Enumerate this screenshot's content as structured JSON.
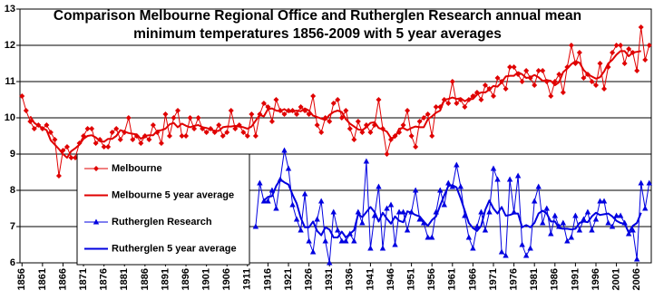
{
  "chart_data": {
    "type": "line",
    "title": "Comparison Melbourne Regional Office and Rutherglen Research annual mean minimum temperatures 1856-2009 with 5 year averages",
    "x": [
      1856,
      1857,
      1858,
      1859,
      1860,
      1861,
      1862,
      1863,
      1864,
      1865,
      1866,
      1867,
      1868,
      1869,
      1870,
      1871,
      1872,
      1873,
      1874,
      1875,
      1876,
      1877,
      1878,
      1879,
      1880,
      1881,
      1882,
      1883,
      1884,
      1885,
      1886,
      1887,
      1888,
      1889,
      1890,
      1891,
      1892,
      1893,
      1894,
      1895,
      1896,
      1897,
      1898,
      1899,
      1900,
      1901,
      1902,
      1903,
      1904,
      1905,
      1906,
      1907,
      1908,
      1909,
      1910,
      1911,
      1912,
      1913,
      1914,
      1915,
      1916,
      1917,
      1918,
      1919,
      1920,
      1921,
      1922,
      1923,
      1924,
      1925,
      1926,
      1927,
      1928,
      1929,
      1930,
      1931,
      1932,
      1933,
      1934,
      1935,
      1936,
      1937,
      1938,
      1939,
      1940,
      1941,
      1942,
      1943,
      1944,
      1945,
      1946,
      1947,
      1948,
      1949,
      1950,
      1951,
      1952,
      1953,
      1954,
      1955,
      1956,
      1957,
      1958,
      1959,
      1960,
      1961,
      1962,
      1963,
      1964,
      1965,
      1966,
      1967,
      1968,
      1969,
      1970,
      1971,
      1972,
      1973,
      1974,
      1975,
      1976,
      1977,
      1978,
      1979,
      1980,
      1981,
      1982,
      1983,
      1984,
      1985,
      1986,
      1987,
      1988,
      1989,
      1990,
      1991,
      1992,
      1993,
      1994,
      1995,
      1996,
      1997,
      1998,
      1999,
      2000,
      2001,
      2002,
      2003,
      2004,
      2005,
      2006,
      2007,
      2008,
      2009
    ],
    "xlim": [
      1855.5,
      2009.5
    ],
    "xticks": [
      1856,
      1861,
      1866,
      1871,
      1876,
      1881,
      1886,
      1891,
      1896,
      1901,
      1906,
      1911,
      1916,
      1921,
      1926,
      1931,
      1936,
      1941,
      1946,
      1951,
      1956,
      1961,
      1966,
      1971,
      1976,
      1981,
      1986,
      1991,
      1996,
      2001,
      2006
    ],
    "ylim": [
      6,
      13
    ],
    "yticks": [
      6,
      7,
      8,
      9,
      10,
      11,
      12,
      13
    ],
    "grid": true,
    "legend": "lower-left",
    "series": [
      {
        "name": "Melbourne",
        "color": "#e00000",
        "marker": "diamond",
        "width": 1,
        "values": [
          10.6,
          10.2,
          9.9,
          9.7,
          9.8,
          9.7,
          9.8,
          9.6,
          9.4,
          8.4,
          9.1,
          9.2,
          8.9,
          8.9,
          9.3,
          9.5,
          9.7,
          9.7,
          9.3,
          9.4,
          9.2,
          9.2,
          9.6,
          9.7,
          9.4,
          9.6,
          10.0,
          9.4,
          9.5,
          9.3,
          9.5,
          9.4,
          9.8,
          9.6,
          9.3,
          10.1,
          9.5,
          10.0,
          10.2,
          9.5,
          9.5,
          10.0,
          9.7,
          10.0,
          9.7,
          9.6,
          9.7,
          9.6,
          9.8,
          9.5,
          9.6,
          10.2,
          9.7,
          9.8,
          9.6,
          9.5,
          10.1,
          9.5,
          10.1,
          10.4,
          10.3,
          9.9,
          10.5,
          10.2,
          10.1,
          10.2,
          10.2,
          10.1,
          10.3,
          10.2,
          10.1,
          10.6,
          9.8,
          9.6,
          10.0,
          9.9,
          10.4,
          10.5,
          10.0,
          10.2,
          9.7,
          9.4,
          9.9,
          9.6,
          9.8,
          9.6,
          9.8,
          10.5,
          9.7,
          9.0,
          9.4,
          9.5,
          9.6,
          9.8,
          10.2,
          9.5,
          9.2,
          9.9,
          10.0,
          10.1,
          9.5,
          10.3,
          10.3,
          10.5,
          10.4,
          11.0,
          10.4,
          10.5,
          10.3,
          10.5,
          10.6,
          10.7,
          10.5,
          10.9,
          10.8,
          10.6,
          11.1,
          11.0,
          10.8,
          11.4,
          11.4,
          11.2,
          11.0,
          11.3,
          11.1,
          10.9,
          11.3,
          11.3,
          11.0,
          10.6,
          11.0,
          11.2,
          10.7,
          11.4,
          12.0,
          11.5,
          11.8,
          11.1,
          11.2,
          11.0,
          10.9,
          11.5,
          10.8,
          11.4,
          11.8,
          12.0,
          12.0,
          11.5,
          11.9,
          11.8,
          11.3,
          12.5,
          11.6,
          12.0
        ]
      },
      {
        "name": "Melbourne 5 year average",
        "color": "#e00000",
        "marker": "none",
        "width": 2,
        "values": [
          null,
          null,
          10.04,
          9.86,
          9.78,
          9.72,
          9.66,
          9.38,
          9.26,
          9.14,
          9.0,
          8.9,
          9.08,
          9.16,
          9.26,
          9.42,
          9.5,
          9.52,
          9.46,
          9.36,
          9.34,
          9.42,
          9.42,
          9.5,
          9.66,
          9.62,
          9.58,
          9.56,
          9.54,
          9.42,
          9.5,
          9.52,
          9.52,
          9.64,
          9.66,
          9.7,
          9.82,
          9.86,
          9.74,
          9.84,
          9.78,
          9.74,
          9.78,
          9.8,
          9.74,
          9.72,
          9.68,
          9.64,
          9.64,
          9.74,
          9.76,
          9.76,
          9.78,
          9.76,
          9.74,
          9.7,
          9.76,
          9.92,
          10.08,
          10.04,
          10.24,
          10.26,
          10.2,
          10.18,
          10.24,
          10.16,
          10.18,
          10.2,
          10.18,
          10.26,
          10.2,
          10.06,
          10.02,
          9.98,
          9.94,
          10.08,
          10.16,
          10.2,
          10.16,
          9.96,
          9.84,
          9.76,
          9.68,
          9.66,
          9.74,
          9.86,
          9.88,
          9.72,
          9.68,
          9.62,
          9.44,
          9.46,
          9.7,
          9.72,
          9.66,
          9.72,
          9.76,
          9.74,
          9.74,
          9.96,
          10.04,
          10.14,
          10.2,
          10.5,
          10.52,
          10.56,
          10.52,
          10.54,
          10.46,
          10.52,
          10.52,
          10.64,
          10.7,
          10.7,
          10.78,
          10.88,
          10.86,
          10.98,
          11.14,
          11.16,
          11.16,
          11.26,
          11.2,
          11.1,
          11.12,
          11.18,
          11.12,
          11.02,
          11.04,
          11.02,
          10.9,
          10.98,
          11.26,
          11.36,
          11.48,
          11.56,
          11.52,
          11.32,
          11.2,
          11.14,
          11.08,
          11.12,
          11.28,
          11.5,
          11.6,
          11.74,
          11.84,
          11.84,
          11.7,
          11.8,
          11.82,
          11.84,
          null,
          null
        ]
      },
      {
        "name": "Rutherglen Research",
        "color": "#0000e0",
        "marker": "triangle",
        "width": 1,
        "values": [
          null,
          null,
          null,
          null,
          null,
          null,
          null,
          null,
          null,
          null,
          null,
          null,
          null,
          null,
          null,
          null,
          null,
          null,
          null,
          null,
          null,
          null,
          null,
          null,
          null,
          null,
          null,
          null,
          null,
          null,
          null,
          null,
          null,
          null,
          null,
          null,
          null,
          null,
          null,
          null,
          null,
          null,
          null,
          null,
          null,
          null,
          null,
          null,
          null,
          null,
          null,
          null,
          null,
          null,
          null,
          null,
          null,
          7.0,
          8.2,
          7.7,
          7.7,
          8.0,
          7.5,
          8.3,
          9.1,
          8.6,
          7.6,
          7.2,
          6.9,
          7.9,
          6.6,
          6.3,
          7.2,
          7.7,
          6.6,
          6.0,
          7.4,
          6.9,
          6.6,
          6.6,
          6.8,
          6.6,
          7.4,
          7.1,
          8.8,
          6.4,
          7.3,
          8.1,
          6.4,
          7.5,
          7.6,
          6.5,
          7.4,
          7.4,
          6.9,
          7.4,
          8.0,
          7.2,
          7.1,
          6.7,
          6.7,
          7.4,
          8.0,
          7.6,
          8.2,
          8.1,
          8.7,
          8.1,
          7.3,
          6.7,
          6.4,
          7.0,
          7.4,
          6.9,
          7.4,
          8.6,
          8.3,
          6.3,
          6.2,
          8.3,
          7.4,
          8.4,
          6.5,
          6.2,
          6.4,
          7.7,
          8.1,
          7.1,
          7.5,
          6.8,
          7.3,
          7.0,
          7.1,
          6.6,
          6.7,
          7.3,
          6.9,
          7.2,
          7.4,
          6.9,
          7.2,
          7.7,
          7.7,
          7.1,
          7.0,
          7.3,
          7.3,
          7.1,
          6.8,
          6.9,
          6.1,
          8.2,
          7.5,
          8.2
        ]
      },
      {
        "name": "Rutherglen 5 year average",
        "color": "#0000e0",
        "marker": "none",
        "width": 2,
        "values": [
          null,
          null,
          null,
          null,
          null,
          null,
          null,
          null,
          null,
          null,
          null,
          null,
          null,
          null,
          null,
          null,
          null,
          null,
          null,
          null,
          null,
          null,
          null,
          null,
          null,
          null,
          null,
          null,
          null,
          null,
          null,
          null,
          null,
          null,
          null,
          null,
          null,
          null,
          null,
          null,
          null,
          null,
          null,
          null,
          null,
          null,
          null,
          null,
          null,
          null,
          null,
          null,
          null,
          null,
          null,
          null,
          null,
          null,
          null,
          7.72,
          7.82,
          7.84,
          8.12,
          8.3,
          8.22,
          8.16,
          7.88,
          7.64,
          7.24,
          6.98,
          6.98,
          7.14,
          6.88,
          6.76,
          6.98,
          6.92,
          6.7,
          6.7,
          6.86,
          6.7,
          6.8,
          6.9,
          7.34,
          7.26,
          7.4,
          7.54,
          7.4,
          7.14,
          7.38,
          7.22,
          7.08,
          7.28,
          7.16,
          7.12,
          7.42,
          7.38,
          7.32,
          7.28,
          7.14,
          7.02,
          7.18,
          7.28,
          7.58,
          7.86,
          8.12,
          8.14,
          8.08,
          7.78,
          7.44,
          7.1,
          6.96,
          6.88,
          7.02,
          7.46,
          7.72,
          7.5,
          7.36,
          7.54,
          7.3,
          7.32,
          7.36,
          7.36,
          6.98,
          7.04,
          6.98,
          7.1,
          7.36,
          7.44,
          7.36,
          7.14,
          7.14,
          6.96,
          6.94,
          6.94,
          6.92,
          6.94,
          7.1,
          7.14,
          7.12,
          7.28,
          7.38,
          7.32,
          7.34,
          7.36,
          7.28,
          7.16,
          7.1,
          7.08,
          6.84,
          7.02,
          7.1,
          7.38,
          null,
          null
        ]
      }
    ]
  }
}
